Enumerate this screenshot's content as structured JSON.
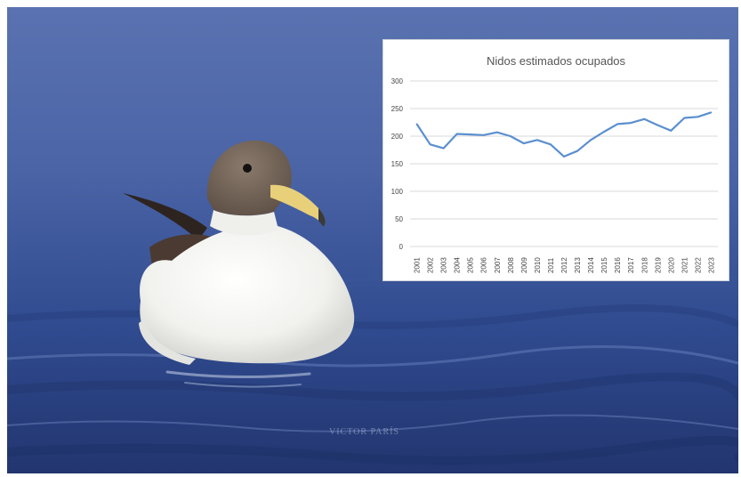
{
  "photo": {
    "subject": "bird on sea surface",
    "credit": "VICTOR PARÍS",
    "colors": {
      "sea_light": "#5a74b4",
      "sea_dark": "#20326f",
      "plumage_white": "#f7f7f4",
      "plumage_brown": "#6a5444",
      "beak": "#e8cf7a"
    }
  },
  "chart_data": {
    "type": "line",
    "title": "Nidos estimados ocupados",
    "xlabel": "",
    "ylabel": "",
    "x": [
      "2001",
      "2002",
      "2003",
      "2004",
      "2005",
      "2006",
      "2007",
      "2008",
      "2009",
      "2010",
      "2011",
      "2012",
      "2013",
      "2014",
      "2015",
      "2016",
      "2017",
      "2018",
      "2019",
      "2020",
      "2021",
      "2022",
      "2023"
    ],
    "series": [
      {
        "values": [
          222,
          185,
          178,
          204,
          203,
          202,
          207,
          200,
          187,
          193,
          185,
          163,
          173,
          193,
          208,
          222,
          224,
          231,
          220,
          210,
          233,
          235,
          243
        ]
      }
    ],
    "ylim": [
      0,
      300
    ],
    "yticks": [
      0,
      50,
      100,
      150,
      200,
      250,
      300
    ],
    "grid": true,
    "line_color": "#5b8fcf",
    "grid_color": "#d9d9d9"
  }
}
